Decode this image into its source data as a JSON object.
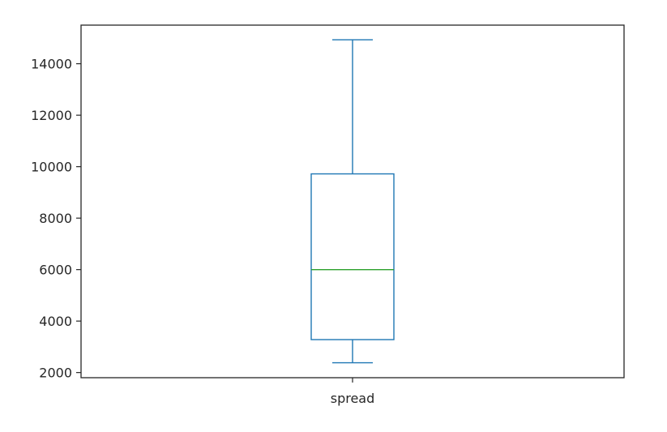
{
  "chart_data": {
    "type": "box",
    "title": "",
    "xlabel": "",
    "ylabel": "",
    "categories": [
      "spread"
    ],
    "boxes": [
      {
        "name": "spread",
        "whisker_low": 2380,
        "q1": 3280,
        "median": 6000,
        "q3": 9720,
        "whisker_high": 14930
      }
    ],
    "ylim": [
      1800,
      15500
    ],
    "yticks": [
      2000,
      4000,
      6000,
      8000,
      10000,
      12000,
      14000
    ],
    "grid": false,
    "colors": {
      "box": "#1f77b4",
      "median": "#2ca02c",
      "axes": "#262626",
      "text": "#262626"
    }
  }
}
